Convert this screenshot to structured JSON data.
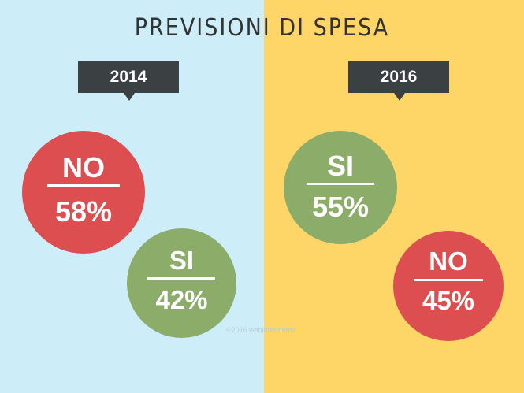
{
  "title": "PREVISIONI DI SPESA",
  "watermark": "©2016 webinfermento",
  "colors": {
    "left_bg": "#cdeef8",
    "right_bg": "#fdd667",
    "tag_bg": "#3b4043",
    "no": "#dc4e50",
    "si": "#8cac6a"
  },
  "chart_data": [
    {
      "type": "pie",
      "year": "2014",
      "slices": [
        {
          "label": "NO",
          "value": 58,
          "display": "58%"
        },
        {
          "label": "SI",
          "value": 42,
          "display": "42%"
        }
      ]
    },
    {
      "type": "pie",
      "year": "2016",
      "slices": [
        {
          "label": "SI",
          "value": 55,
          "display": "55%"
        },
        {
          "label": "NO",
          "value": 45,
          "display": "45%"
        }
      ]
    }
  ]
}
